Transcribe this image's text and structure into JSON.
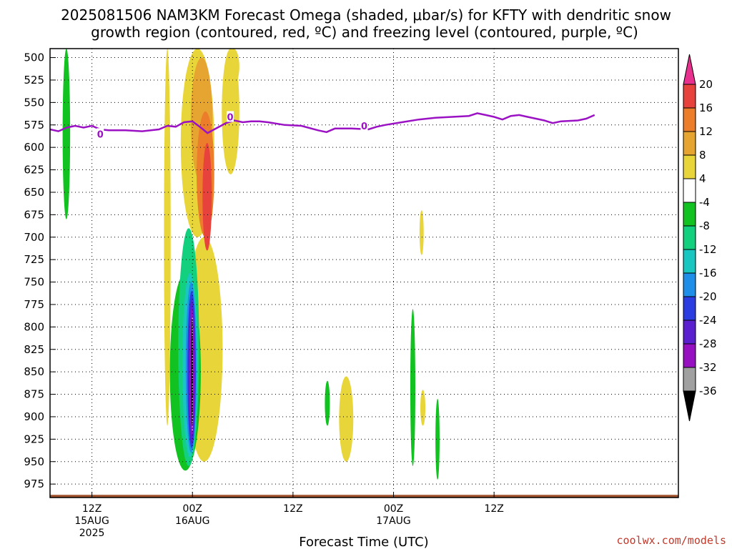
{
  "title_line1": "2025081506 NAM3KM Forecast Omega (shaded, μbar/s) for KFTY with dendritic snow",
  "title_line2": "growth region (contoured, red, ºC) and freezing level (contoured, purple, ºC)",
  "credit": "coolwx.com/models",
  "chart_data": {
    "type": "heatmap",
    "xlabel": "Forecast Time (UTC)",
    "ylabel": "",
    "x_range_hours": [
      -17,
      58
    ],
    "y_range_mb": [
      490,
      990
    ],
    "y_ticks": [
      500,
      525,
      550,
      575,
      600,
      625,
      650,
      675,
      700,
      725,
      750,
      775,
      800,
      825,
      850,
      875,
      900,
      925,
      950,
      975
    ],
    "x_ticks": [
      {
        "hour": -12,
        "l1": "12Z",
        "l2": "15AUG",
        "l3": "2025"
      },
      {
        "hour": 0,
        "l1": "00Z",
        "l2": "16AUG",
        "l3": ""
      },
      {
        "hour": 12,
        "l1": "12Z",
        "l2": "",
        "l3": ""
      },
      {
        "hour": 24,
        "l1": "00Z",
        "l2": "17AUG",
        "l3": ""
      },
      {
        "hour": 36,
        "l1": "12Z",
        "l2": "",
        "l3": ""
      }
    ],
    "grid": true,
    "colorbar": {
      "ticks": [
        "20",
        "16",
        "12",
        "8",
        "4",
        "-4",
        "-8",
        "-12",
        "-16",
        "-20",
        "-24",
        "-28",
        "-32",
        "-36"
      ],
      "colors_top_to_bottom": [
        "#e8318f",
        "#e8423c",
        "#ec7d2a",
        "#e6a530",
        "#e8d53a",
        "#ffffff",
        "#12c221",
        "#13d07e",
        "#1ac6c0",
        "#1e8ee8",
        "#2b3ce0",
        "#5a1fcf",
        "#9610c2",
        "#a0a0a0",
        "#000000"
      ]
    },
    "freezing_level": {
      "color": "#9b12c4",
      "label": "0",
      "points": [
        [
          -17,
          580
        ],
        [
          -16,
          582
        ],
        [
          -15,
          578
        ],
        [
          -14,
          576
        ],
        [
          -13,
          578
        ],
        [
          -12,
          576
        ],
        [
          -11,
          580
        ],
        [
          -10,
          581
        ],
        [
          -8,
          581
        ],
        [
          -6,
          582
        ],
        [
          -4,
          580
        ],
        [
          -3,
          576
        ],
        [
          -2,
          577
        ],
        [
          -1,
          572
        ],
        [
          0,
          571
        ],
        [
          1,
          578
        ],
        [
          1.8,
          584
        ],
        [
          3,
          578
        ],
        [
          4,
          573
        ],
        [
          5,
          570
        ],
        [
          6,
          572
        ],
        [
          7,
          571
        ],
        [
          8,
          571
        ],
        [
          9,
          572
        ],
        [
          11,
          575
        ],
        [
          13,
          576
        ],
        [
          15,
          581
        ],
        [
          16,
          583
        ],
        [
          17,
          579
        ],
        [
          19,
          579
        ],
        [
          21,
          580
        ],
        [
          22,
          577
        ],
        [
          23,
          575
        ],
        [
          25,
          572
        ],
        [
          27,
          569
        ],
        [
          29,
          567
        ],
        [
          31,
          566
        ],
        [
          33,
          565
        ],
        [
          34,
          562
        ],
        [
          35,
          564
        ],
        [
          36,
          566
        ],
        [
          37,
          569
        ],
        [
          38,
          565
        ],
        [
          39,
          564
        ],
        [
          40,
          566
        ],
        [
          42,
          570
        ],
        [
          43,
          573
        ],
        [
          44,
          571
        ],
        [
          46,
          570
        ],
        [
          47,
          568
        ],
        [
          48,
          564
        ]
      ],
      "label_positions": [
        [
          -11,
          585
        ],
        [
          4.5,
          566
        ],
        [
          20.5,
          576
        ]
      ]
    },
    "omega_features": [
      {
        "value": 6,
        "hours": [
          -3.4,
          -2.6
        ],
        "mb": [
          490,
          910
        ]
      },
      {
        "value": 6,
        "hours": [
          -1.4,
          2.6
        ],
        "mb": [
          490,
          700
        ]
      },
      {
        "value": 6,
        "hours": [
          -0.8,
          3.6
        ],
        "mb": [
          700,
          950
        ]
      },
      {
        "value": 10,
        "hours": [
          -0.2,
          2.4
        ],
        "mb": [
          500,
          640
        ]
      },
      {
        "value": 14,
        "hours": [
          0.5,
          2.6
        ],
        "mb": [
          560,
          700
        ]
      },
      {
        "value": 18,
        "hours": [
          1.2,
          2.3
        ],
        "mb": [
          595,
          715
        ]
      },
      {
        "value": 6,
        "hours": [
          3.5,
          5.6
        ],
        "mb": [
          490,
          630
        ]
      },
      {
        "value": 6,
        "hours": [
          4.2,
          5.6
        ],
        "mb": [
          490,
          530
        ]
      },
      {
        "value": 6,
        "hours": [
          17.5,
          19.2
        ],
        "mb": [
          855,
          950
        ]
      },
      {
        "value": 6,
        "hours": [
          27.1,
          27.6
        ],
        "mb": [
          670,
          720
        ]
      },
      {
        "value": 6,
        "hours": [
          27.2,
          27.8
        ],
        "mb": [
          870,
          910
        ]
      },
      {
        "value": -6,
        "hours": [
          -15.5,
          -14.6
        ],
        "mb": [
          490,
          680
        ]
      },
      {
        "value": -6,
        "hours": [
          -2.7,
          1.0
        ],
        "mb": [
          740,
          960
        ]
      },
      {
        "value": -10,
        "hours": [
          -1.7,
          0.8
        ],
        "mb": [
          690,
          955
        ]
      },
      {
        "value": -14,
        "hours": [
          -1.2,
          0.6
        ],
        "mb": [
          740,
          945
        ]
      },
      {
        "value": -18,
        "hours": [
          -0.8,
          0.5
        ],
        "mb": [
          750,
          940
        ]
      },
      {
        "value": -22,
        "hours": [
          -0.6,
          0.4
        ],
        "mb": [
          760,
          935
        ]
      },
      {
        "value": -26,
        "hours": [
          -0.5,
          0.3
        ],
        "mb": [
          770,
          930
        ]
      },
      {
        "value": -30,
        "hours": [
          -0.35,
          0.2
        ],
        "mb": [
          780,
          920
        ]
      },
      {
        "value": -40,
        "hours": [
          -0.15,
          0.05
        ],
        "mb": [
          790,
          910
        ]
      },
      {
        "value": -6,
        "hours": [
          15.8,
          16.4
        ],
        "mb": [
          860,
          910
        ]
      },
      {
        "value": -6,
        "hours": [
          26.0,
          26.6
        ],
        "mb": [
          780,
          955
        ]
      },
      {
        "value": -6,
        "hours": [
          29.0,
          29.5
        ],
        "mb": [
          880,
          970
        ]
      }
    ],
    "red_contour_dots": {
      "hours": [
        -0.05,
        0.05
      ],
      "mb": [
        790,
        915
      ]
    },
    "ground_mb": [
      987,
      994
    ]
  }
}
